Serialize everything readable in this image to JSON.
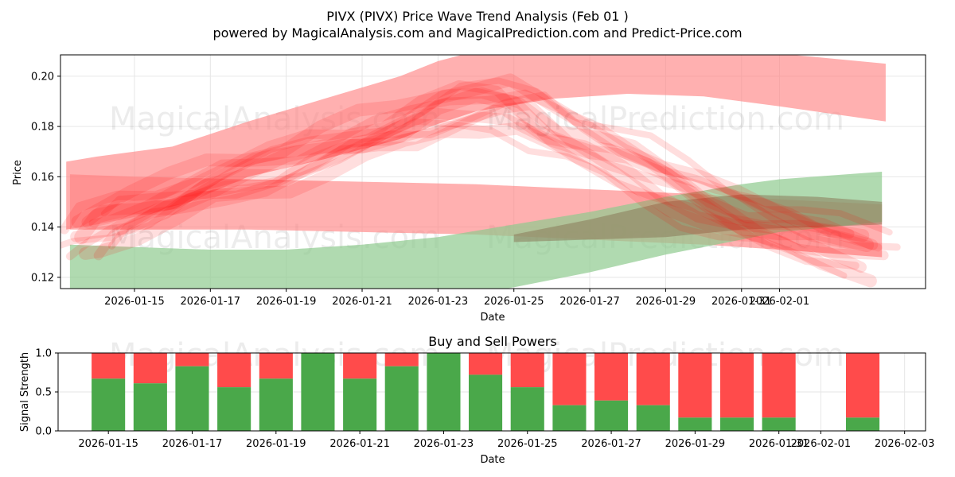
{
  "title": "PIVX (PIVX) Price Wave Trend Analysis (Feb 01 )",
  "subtitle": "powered by MagicalAnalysis.com and MagicalPrediction.com and Predict-Price.com",
  "watermarks": [
    "MagicalAnalysis.com",
    "MagicalPrediction.com"
  ],
  "chart_data": [
    {
      "type": "area",
      "title": "",
      "xlabel": "Date",
      "ylabel": "Price",
      "xlim_day": [
        -1.95,
        20.85
      ],
      "ylim": [
        0.1155,
        0.2085
      ],
      "x_ticks": [
        {
          "day": 0,
          "label": "2026-01-15"
        },
        {
          "day": 2,
          "label": "2026-01-17"
        },
        {
          "day": 4,
          "label": "2026-01-19"
        },
        {
          "day": 6,
          "label": "2026-01-21"
        },
        {
          "day": 8,
          "label": "2026-01-23"
        },
        {
          "day": 10,
          "label": "2026-01-25"
        },
        {
          "day": 12,
          "label": "2026-01-27"
        },
        {
          "day": 14,
          "label": "2026-01-29"
        },
        {
          "day": 16,
          "label": "2026-01-31"
        },
        {
          "day": 17,
          "label": "2026-02-01"
        }
      ],
      "y_ticks": [
        0.12,
        0.14,
        0.16,
        0.18,
        0.2
      ],
      "y_tick_labels": [
        "0.12",
        "0.14",
        "0.16",
        "0.18",
        "0.20"
      ],
      "grid": true,
      "colors": {
        "red": "#ff0000",
        "red_band": "#ff8080",
        "green_band": "#8fca8f"
      },
      "bands": [
        {
          "name": "upper-red-band",
          "color": "red",
          "x": [
            -1.8,
            -1,
            1,
            3,
            5,
            7,
            8,
            9,
            11,
            13,
            15,
            17,
            19.8
          ],
          "upper": [
            0.166,
            0.168,
            0.172,
            0.182,
            0.191,
            0.2,
            0.206,
            0.21,
            0.211,
            0.211,
            0.21,
            0.209,
            0.205
          ],
          "lower": [
            0.139,
            0.141,
            0.147,
            0.16,
            0.167,
            0.175,
            0.181,
            0.186,
            0.191,
            0.193,
            0.192,
            0.188,
            0.182
          ]
        },
        {
          "name": "falling-red-band",
          "color": "red",
          "x": [
            -1.7,
            0,
            3,
            6,
            9,
            12,
            15,
            17,
            19.7
          ],
          "upper": [
            0.161,
            0.16,
            0.159,
            0.158,
            0.157,
            0.155,
            0.153,
            0.151,
            0.149
          ],
          "lower": [
            0.139,
            0.139,
            0.139,
            0.138,
            0.137,
            0.135,
            0.133,
            0.131,
            0.128
          ]
        },
        {
          "name": "rising-green-band",
          "color": "green",
          "x": [
            -1.7,
            0,
            2,
            4,
            6,
            8,
            10,
            12,
            14,
            16,
            17,
            19.7
          ],
          "upper": [
            0.133,
            0.132,
            0.131,
            0.131,
            0.133,
            0.136,
            0.141,
            0.146,
            0.152,
            0.157,
            0.159,
            0.162
          ],
          "lower": [
            0.112,
            0.11,
            0.108,
            0.107,
            0.108,
            0.111,
            0.116,
            0.122,
            0.129,
            0.135,
            0.138,
            0.142
          ]
        },
        {
          "name": "gray-overlap-band",
          "color": "gray",
          "x": [
            10,
            12,
            14,
            16,
            18,
            19.7
          ],
          "upper": [
            0.137,
            0.143,
            0.15,
            0.153,
            0.152,
            0.15
          ],
          "lower": [
            0.134,
            0.135,
            0.136,
            0.139,
            0.14,
            0.141
          ]
        }
      ],
      "wave_center": {
        "x": [
          -1.4,
          -1,
          0,
          1,
          2,
          3,
          4,
          5,
          6,
          7,
          8,
          9,
          10,
          11,
          12,
          13,
          14,
          15,
          16,
          17,
          18,
          19.3
        ],
        "y": [
          0.136,
          0.141,
          0.146,
          0.15,
          0.157,
          0.161,
          0.165,
          0.171,
          0.175,
          0.179,
          0.186,
          0.189,
          0.189,
          0.178,
          0.172,
          0.166,
          0.158,
          0.15,
          0.143,
          0.139,
          0.135,
          0.13
        ]
      }
    },
    {
      "type": "bar",
      "title": "Buy and Sell Powers",
      "xlabel": "Date",
      "ylabel": "Signal Strength",
      "xlim_day": [
        -1.2,
        19.5
      ],
      "ylim": [
        0,
        1
      ],
      "y_ticks": [
        0,
        0.5,
        1
      ],
      "y_tick_labels": [
        "0.0",
        "0.5",
        "1.0"
      ],
      "x_ticks": [
        {
          "day": 0,
          "label": "2026-01-15"
        },
        {
          "day": 2,
          "label": "2026-01-17"
        },
        {
          "day": 4,
          "label": "2026-01-19"
        },
        {
          "day": 6,
          "label": "2026-01-21"
        },
        {
          "day": 8,
          "label": "2026-01-23"
        },
        {
          "day": 10,
          "label": "2026-01-25"
        },
        {
          "day": 12,
          "label": "2026-01-27"
        },
        {
          "day": 14,
          "label": "2026-01-29"
        },
        {
          "day": 16,
          "label": "2026-01-31"
        },
        {
          "day": 17,
          "label": "2026-02-01"
        },
        {
          "day": 19,
          "label": "2026-02-03"
        }
      ],
      "colors": {
        "buy": "#4aa84a",
        "sell": "#ff4b4b"
      },
      "series": [
        {
          "name": "Buy",
          "color": "buy"
        },
        {
          "name": "Sell",
          "color": "sell"
        }
      ],
      "bars": [
        {
          "day": 0,
          "buy": 0.67
        },
        {
          "day": 1,
          "buy": 0.61
        },
        {
          "day": 2,
          "buy": 0.83
        },
        {
          "day": 3,
          "buy": 0.56
        },
        {
          "day": 4,
          "buy": 0.67
        },
        {
          "day": 5,
          "buy": 1.0
        },
        {
          "day": 6,
          "buy": 0.67
        },
        {
          "day": 7,
          "buy": 0.83
        },
        {
          "day": 8,
          "buy": 1.0
        },
        {
          "day": 9,
          "buy": 0.72
        },
        {
          "day": 10,
          "buy": 0.56
        },
        {
          "day": 11,
          "buy": 0.33
        },
        {
          "day": 12,
          "buy": 0.39
        },
        {
          "day": 13,
          "buy": 0.33
        },
        {
          "day": 14,
          "buy": 0.17
        },
        {
          "day": 15,
          "buy": 0.17
        },
        {
          "day": 16,
          "buy": 0.17
        },
        {
          "day": 18,
          "buy": 0.17
        }
      ]
    }
  ]
}
